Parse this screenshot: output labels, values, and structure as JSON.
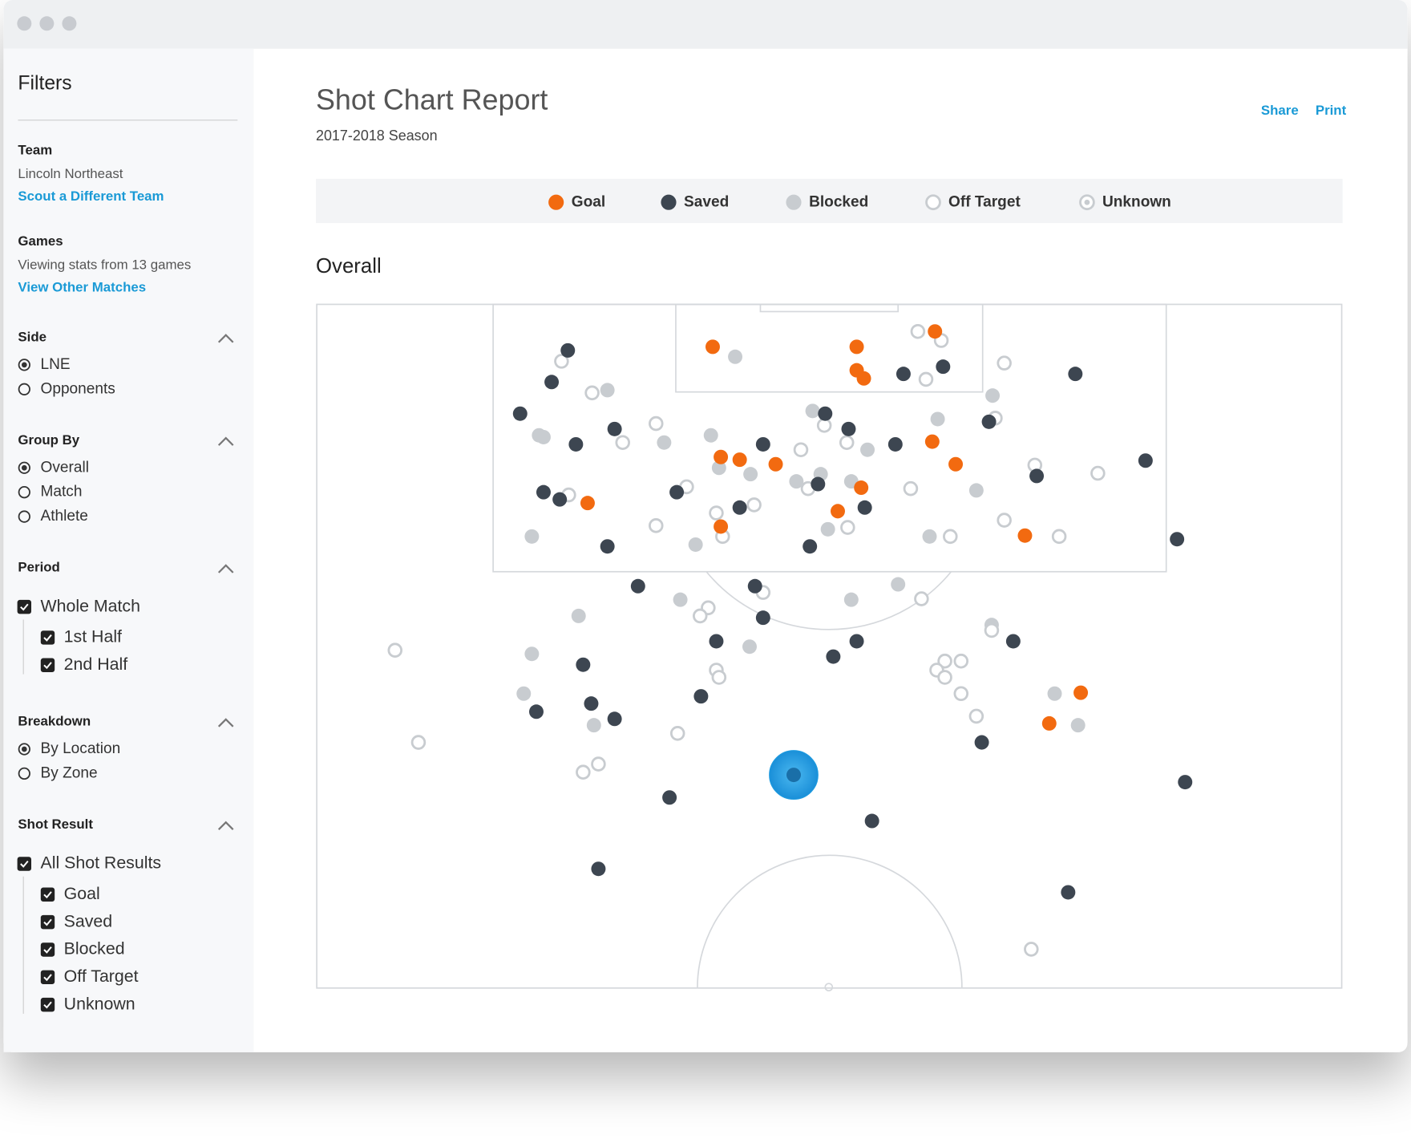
{
  "sidebar": {
    "title": "Filters",
    "team": {
      "label": "Team",
      "value": "Lincoln Northeast",
      "link": "Scout a Different Team"
    },
    "games": {
      "label": "Games",
      "value": "Viewing stats from 13 games",
      "link": "View Other Matches"
    },
    "sections": [
      {
        "label": "Side",
        "kind": "radio",
        "options": [
          {
            "label": "LNE",
            "selected": true
          },
          {
            "label": "Opponents",
            "selected": false
          }
        ]
      },
      {
        "label": "Group By",
        "kind": "radio",
        "options": [
          {
            "label": "Overall",
            "selected": true
          },
          {
            "label": "Match",
            "selected": false
          },
          {
            "label": "Athlete",
            "selected": false
          }
        ]
      },
      {
        "label": "Period",
        "kind": "checkbox",
        "all": {
          "label": "Whole Match",
          "checked": true
        },
        "options": [
          {
            "label": "1st Half",
            "checked": true
          },
          {
            "label": "2nd Half",
            "checked": true
          }
        ]
      },
      {
        "label": "Breakdown",
        "kind": "radio",
        "options": [
          {
            "label": "By Location",
            "selected": true
          },
          {
            "label": "By Zone",
            "selected": false
          }
        ]
      },
      {
        "label": "Shot Result",
        "kind": "checkbox",
        "all": {
          "label": "All Shot Results",
          "checked": true
        },
        "options": [
          {
            "label": "Goal",
            "checked": true
          },
          {
            "label": "Saved",
            "checked": true
          },
          {
            "label": "Blocked",
            "checked": true
          },
          {
            "label": "Off Target",
            "checked": true
          },
          {
            "label": "Unknown",
            "checked": true
          }
        ]
      }
    ]
  },
  "header": {
    "title": "Shot Chart Report",
    "subtitle": "2017-2018 Season",
    "actions": [
      "Share",
      "Print"
    ]
  },
  "shot_chart": {
    "type": "scatter",
    "title": "Overall",
    "xlim": [
      352,
      1491
    ],
    "ylim": [
      337,
      1094
    ],
    "series": [
      {
        "name": "Goal",
        "color": "#f26a10",
        "marker": "filled",
        "x": [
          792,
          952,
          1039,
          952,
          960,
          801,
          822,
          862,
          1036,
          1062,
          957,
          931,
          801,
          653,
          1139,
          1201,
          1166
        ],
        "y": [
          384,
          384,
          367,
          410,
          419,
          506,
          509,
          514,
          489,
          514,
          540,
          566,
          583,
          557,
          593,
          767,
          801
        ]
      },
      {
        "name": "Saved",
        "color": "#3d4651",
        "marker": "filled",
        "x": [
          631,
          613,
          578,
          640,
          683,
          604,
          622,
          675,
          752,
          848,
          822,
          917,
          943,
          909,
          961,
          900,
          995,
          1004,
          1048,
          1195,
          1099,
          1152,
          1273,
          1308,
          709,
          839,
          848,
          796,
          926,
          952,
          648,
          657,
          596,
          683,
          779,
          1126,
          1091,
          744,
          969,
          665,
          1317,
          1187
        ],
        "y": [
          388,
          423,
          458,
          492,
          475,
          545,
          553,
          605,
          545,
          492,
          562,
          458,
          475,
          536,
          562,
          605,
          492,
          414,
          406,
          414,
          467,
          527,
          510,
          597,
          649,
          649,
          684,
          710,
          727,
          710,
          736,
          779,
          788,
          796,
          771,
          710,
          822,
          883,
          909,
          962,
          866,
          988
        ]
      },
      {
        "name": "Blocked",
        "color": "#c8ccd0",
        "marker": "filled",
        "x": [
          817,
          675,
          599,
          604,
          738,
          790,
          903,
          964,
          834,
          799,
          912,
          885,
          946,
          1042,
          1103,
          1085,
          920,
          1033,
          773,
          591,
          756,
          643,
          946,
          998,
          833,
          591,
          582,
          660,
          1102,
          1172,
          1198
        ],
        "y": [
          395,
          432,
          482,
          484,
          490,
          482,
          455,
          498,
          525,
          518,
          525,
          533,
          533,
          464,
          438,
          543,
          586,
          594,
          603,
          594,
          664,
          682,
          664,
          647,
          716,
          724,
          768,
          803,
          692,
          768,
          803
        ]
      },
      {
        "name": "Off Target",
        "color": "#c8ccd0",
        "marker": "hollow",
        "x": [
          624,
          658,
          729,
          692,
          916,
          941,
          890,
          898,
          763,
          838,
          796,
          632,
          729,
          803,
          942,
          1012,
          1056,
          1116,
          1177,
          1150,
          1220,
          1106,
          1116,
          1020,
          1046,
          1029,
          848,
          787,
          778,
          1024,
          1102,
          1050,
          1068,
          1041,
          1050,
          1068,
          1085,
          796,
          799,
          753,
          439,
          465,
          665,
          648,
          1146
        ],
        "y": [
          400,
          435,
          469,
          490,
          471,
          490,
          498,
          541,
          539,
          559,
          568,
          548,
          582,
          594,
          584,
          541,
          594,
          576,
          594,
          515,
          524,
          463,
          402,
          367,
          377,
          420,
          656,
          673,
          682,
          663,
          698,
          732,
          732,
          742,
          750,
          768,
          793,
          742,
          750,
          812,
          720,
          822,
          846,
          855,
          1051
        ]
      },
      {
        "name": "Unknown",
        "color": "#c8ccd0",
        "marker": "target",
        "x": [],
        "y": []
      }
    ],
    "selected": {
      "x": 882,
      "y": 858,
      "color": "#1e9be0"
    }
  }
}
